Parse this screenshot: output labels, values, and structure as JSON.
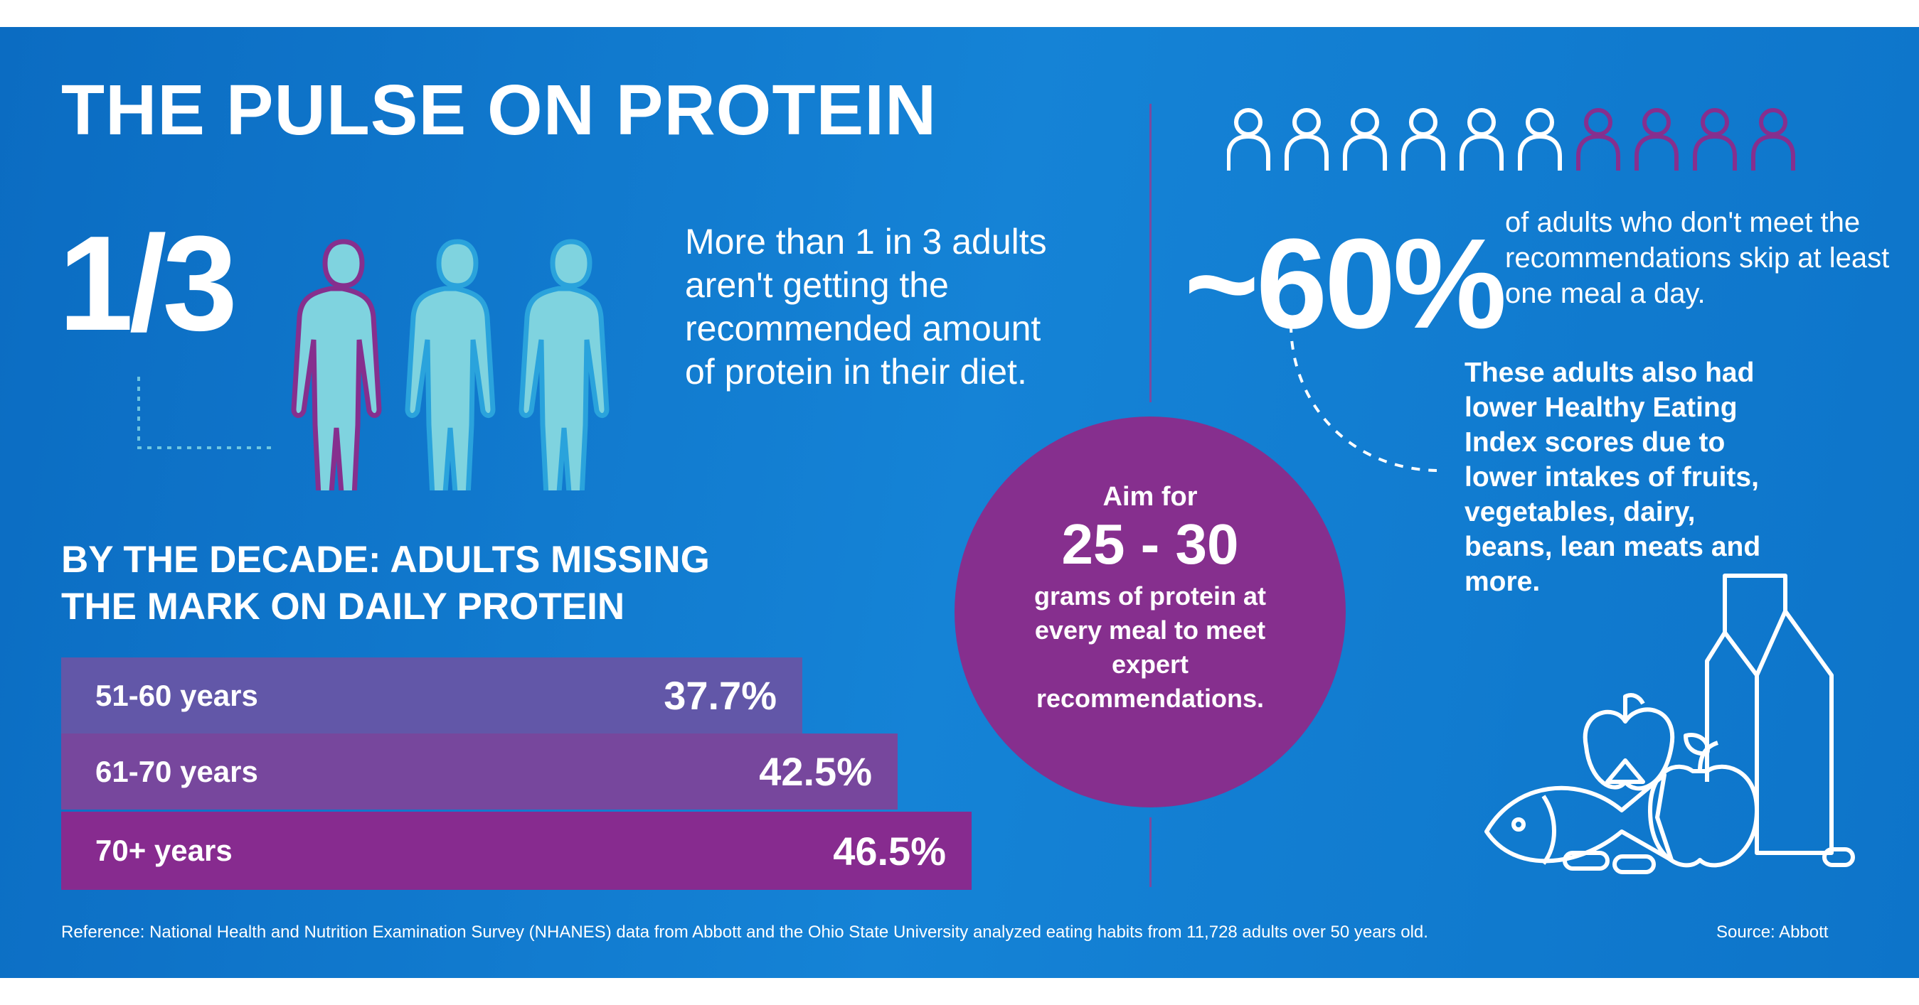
{
  "title": "THE PULSE ON PROTEIN",
  "one_third": {
    "stat": "1/3",
    "text": "More than 1 in 3 adults aren't getting the recommended amount of protein in their diet.",
    "figures": {
      "highlighted": 1,
      "total": 3
    }
  },
  "decade": {
    "heading_line1": "BY THE DECADE: ADULTS MISSING",
    "heading_line2": "THE MARK ON DAILY PROTEIN"
  },
  "chart_data": {
    "type": "bar",
    "orientation": "horizontal",
    "title": "BY THE DECADE: ADULTS MISSING THE MARK ON DAILY PROTEIN",
    "categories": [
      "51-60 years",
      "61-70 years",
      "70+ years"
    ],
    "values": [
      37.7,
      42.5,
      46.5
    ],
    "value_labels": [
      "37.7%",
      "42.5%",
      "46.5%"
    ],
    "colors": [
      "#6257a8",
      "#77479d",
      "#872b8f"
    ],
    "grid": false
  },
  "aim": {
    "line1": "Aim for",
    "range": "25 - 30",
    "rest": "grams of protein at every meal to meet expert recommendations."
  },
  "skip": {
    "stat": "~60%",
    "text": "of adults who don't meet the recommendations skip at least one meal a day.",
    "people": {
      "white": 6,
      "purple": 4
    }
  },
  "hei_text": "These adults also had lower Healthy Eating Index scores due to lower intakes of fruits, vegetables, dairy, beans, lean meats and more.",
  "footer": "Reference: National Health and Nutrition Examination Survey (NHANES) data from Abbott and the Ohio State University analyzed eating habits from 11,728 adults over 50 years old.",
  "source": "Source: Abbott",
  "colors": {
    "background": "#1180d3",
    "purple": "#862f8e",
    "figure_fill": "#7fd3df"
  }
}
